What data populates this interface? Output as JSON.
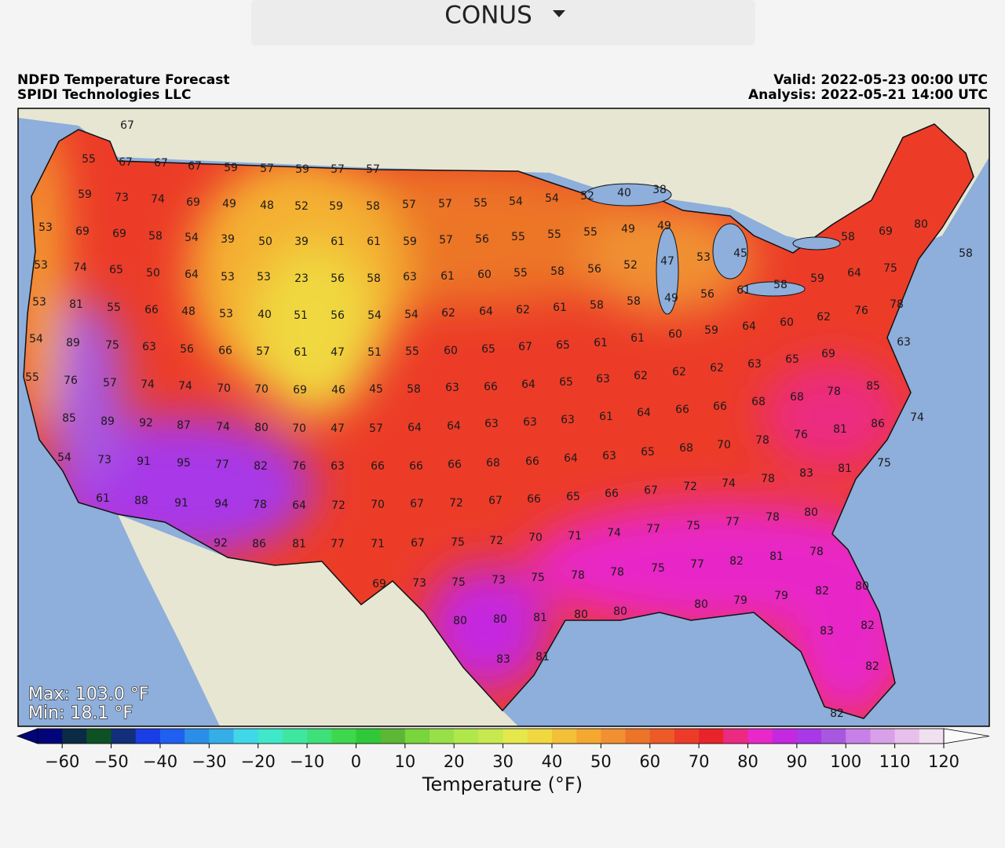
{
  "header": {
    "region": "CONUS"
  },
  "map": {
    "title": "NDFD Temperature Forecast",
    "credit": "SPIDI Technologies LLC",
    "valid": "Valid: 2022-05-23 00:00 UTC",
    "analysis": "Analysis: 2022-05-21 14:00 UTC",
    "max": "Max: 103.0 °F",
    "min": "Min: 18.1 °F",
    "station_values": [
      67,
      55,
      67,
      67,
      67,
      59,
      57,
      59,
      57,
      57,
      59,
      73,
      74,
      69,
      49,
      48,
      52,
      59,
      58,
      57,
      57,
      55,
      54,
      54,
      52,
      40,
      38,
      53,
      69,
      69,
      58,
      54,
      39,
      50,
      39,
      61,
      61,
      59,
      57,
      56,
      55,
      55,
      55,
      49,
      49,
      58,
      69,
      80,
      53,
      74,
      65,
      50,
      64,
      53,
      53,
      23,
      56,
      58,
      63,
      61,
      60,
      55,
      58,
      56,
      52,
      47,
      53,
      45,
      58,
      59,
      64,
      75,
      53,
      81,
      55,
      66,
      48,
      53,
      40,
      51,
      56,
      54,
      54,
      62,
      64,
      62,
      61,
      58,
      58,
      49,
      56,
      61,
      58,
      78,
      54,
      89,
      75,
      63,
      56,
      66,
      57,
      61,
      47,
      51,
      55,
      60,
      65,
      67,
      65,
      61,
      61,
      60,
      59,
      64,
      60,
      62,
      76,
      63,
      69,
      55,
      76,
      57,
      74,
      74,
      70,
      70,
      69,
      46,
      45,
      58,
      63,
      66,
      64,
      65,
      63,
      62,
      62,
      62,
      63,
      65,
      85,
      89,
      92,
      87,
      74,
      80,
      70,
      47,
      57,
      64,
      64,
      63,
      63,
      63,
      61,
      64,
      66,
      66,
      68,
      68,
      78,
      85,
      74,
      86,
      81,
      76,
      54,
      73,
      91,
      95,
      77,
      82,
      76,
      63,
      66,
      66,
      66,
      68,
      66,
      64,
      63,
      65,
      68,
      70,
      78,
      83,
      81,
      75,
      61,
      88,
      91,
      94,
      78,
      64,
      72,
      70,
      67,
      72,
      67,
      66,
      65,
      66,
      67,
      72,
      74,
      78,
      92,
      86,
      81,
      77,
      71,
      67,
      75,
      72,
      70,
      71,
      74,
      77,
      75,
      77,
      78,
      80,
      69,
      73,
      75,
      73,
      75,
      78,
      78,
      75,
      77,
      82,
      81,
      78,
      80,
      80,
      81,
      80,
      80,
      80,
      79,
      79,
      82,
      80,
      83,
      81,
      83,
      82,
      82,
      82
    ]
  },
  "colorbar": {
    "label": "Temperature (°F)",
    "lim": [
      -65,
      120
    ],
    "ticks": [
      {
        "value": -60,
        "label": "−60"
      },
      {
        "value": -50,
        "label": "−50"
      },
      {
        "value": -40,
        "label": "−40"
      },
      {
        "value": -30,
        "label": "−30"
      },
      {
        "value": -20,
        "label": "−20"
      },
      {
        "value": -10,
        "label": "−10"
      },
      0,
      10,
      20,
      30,
      40,
      50,
      60,
      70,
      80,
      90,
      100,
      110,
      120
    ],
    "colors": [
      "#03037a",
      "#0b2b45",
      "#0d5224",
      "#132e7a",
      "#1a3ee6",
      "#2060f0",
      "#2a8ee8",
      "#35aee8",
      "#40d8e8",
      "#3ee8c8",
      "#3ee6a0",
      "#3ee07a",
      "#3ed84e",
      "#30c838",
      "#5cb834",
      "#7ad43c",
      "#98e048",
      "#b0e84c",
      "#c8e850",
      "#e4e84a",
      "#f0d840",
      "#f4c038",
      "#f4a830",
      "#f09030",
      "#ec7428",
      "#ec5a28",
      "#ec3c28",
      "#e8242a",
      "#ec2a82",
      "#e828c8",
      "#c428e0",
      "#a838e8",
      "#a858e0",
      "#c880e8",
      "#d8a0e8",
      "#e8c0ec",
      "#f0e0f0"
    ],
    "under_color": "#03037a",
    "over_color": "#fafafa"
  }
}
